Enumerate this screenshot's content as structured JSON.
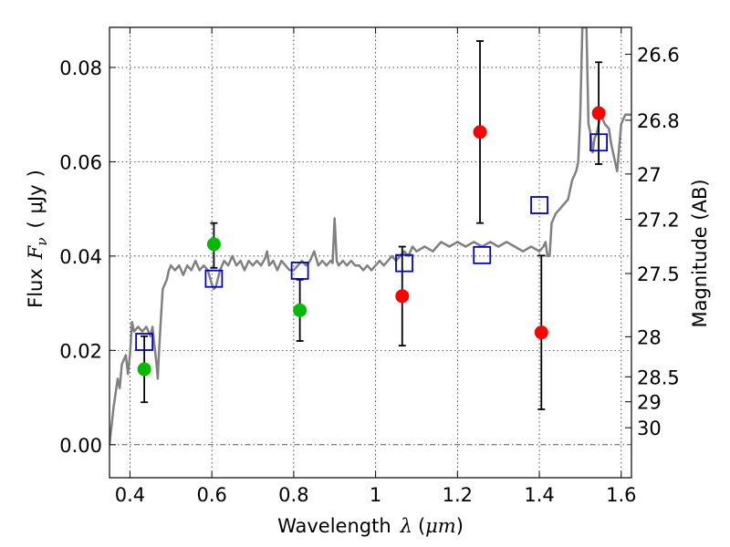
{
  "chart_data": {
    "type": "scatter",
    "xlabel": "Wavelength λ (μm)",
    "xlabel_parts": {
      "text": "Wavelength",
      "symbol": "λ",
      "unit_open": "(",
      "unit": "μm",
      "unit_close": ")"
    },
    "ylabel": "Flux F_ν ( μJy )",
    "ylabel_parts": {
      "text": "Flux",
      "symbol": "F",
      "subscript": "ν",
      "unit_open": "(",
      "unit": "μJy",
      "unit_close": ")"
    },
    "y2label": "Magnitude (AB)",
    "xlim": [
      0.35,
      1.625
    ],
    "ylim": [
      -0.007,
      0.0885
    ],
    "grid": true,
    "x_ticks": [
      {
        "value": 0.4,
        "label": "0.4"
      },
      {
        "value": 0.6,
        "label": "0.6"
      },
      {
        "value": 0.8,
        "label": "0.8"
      },
      {
        "value": 1.0,
        "label": "1"
      },
      {
        "value": 1.2,
        "label": "1.2"
      },
      {
        "value": 1.4,
        "label": "1.4"
      },
      {
        "value": 1.6,
        "label": "1.6"
      }
    ],
    "y_ticks": [
      {
        "value": 0.0,
        "label": "0.00"
      },
      {
        "value": 0.02,
        "label": "0.02"
      },
      {
        "value": 0.04,
        "label": "0.04"
      },
      {
        "value": 0.06,
        "label": "0.06"
      },
      {
        "value": 0.08,
        "label": "0.08"
      }
    ],
    "y2_ticks": [
      {
        "label": "26.6",
        "flux": 0.0828
      },
      {
        "label": "26.8",
        "flux": 0.0688
      },
      {
        "label": "27",
        "flux": 0.0574
      },
      {
        "label": "27.2",
        "flux": 0.0478
      },
      {
        "label": "27.5",
        "flux": 0.0363
      },
      {
        "label": "28",
        "flux": 0.0229
      },
      {
        "label": "28.5",
        "flux": 0.0144
      },
      {
        "label": "29",
        "flux": 0.0091
      },
      {
        "label": "30",
        "flux": 0.0036
      }
    ],
    "series": [
      {
        "kind": "line",
        "color": "#808080",
        "points": [
          [
            0.35,
            0.0
          ],
          [
            0.36,
            0.008
          ],
          [
            0.37,
            0.014
          ],
          [
            0.375,
            0.012
          ],
          [
            0.38,
            0.017
          ],
          [
            0.39,
            0.019
          ],
          [
            0.395,
            0.015
          ],
          [
            0.4,
            0.019
          ],
          [
            0.405,
            0.026
          ],
          [
            0.41,
            0.024
          ],
          [
            0.42,
            0.025
          ],
          [
            0.43,
            0.024
          ],
          [
            0.44,
            0.025
          ],
          [
            0.45,
            0.023
          ],
          [
            0.455,
            0.025
          ],
          [
            0.46,
            0.021
          ],
          [
            0.465,
            0.017
          ],
          [
            0.468,
            0.014
          ],
          [
            0.47,
            0.018
          ],
          [
            0.475,
            0.026
          ],
          [
            0.48,
            0.033
          ],
          [
            0.49,
            0.035
          ],
          [
            0.495,
            0.037
          ],
          [
            0.5,
            0.038
          ],
          [
            0.51,
            0.037
          ],
          [
            0.52,
            0.038
          ],
          [
            0.53,
            0.036
          ],
          [
            0.54,
            0.038
          ],
          [
            0.55,
            0.037
          ],
          [
            0.56,
            0.039
          ],
          [
            0.57,
            0.037
          ],
          [
            0.58,
            0.038
          ],
          [
            0.59,
            0.037
          ],
          [
            0.6,
            0.034
          ],
          [
            0.605,
            0.033
          ],
          [
            0.61,
            0.0335
          ],
          [
            0.62,
            0.037
          ],
          [
            0.63,
            0.039
          ],
          [
            0.64,
            0.038
          ],
          [
            0.65,
            0.04
          ],
          [
            0.66,
            0.038
          ],
          [
            0.67,
            0.039
          ],
          [
            0.68,
            0.037
          ],
          [
            0.69,
            0.039
          ],
          [
            0.7,
            0.038
          ],
          [
            0.71,
            0.039
          ],
          [
            0.72,
            0.038
          ],
          [
            0.73,
            0.0395
          ],
          [
            0.735,
            0.041
          ],
          [
            0.74,
            0.038
          ],
          [
            0.75,
            0.039
          ],
          [
            0.76,
            0.037
          ],
          [
            0.77,
            0.039
          ],
          [
            0.78,
            0.038
          ],
          [
            0.79,
            0.037
          ],
          [
            0.8,
            0.037
          ],
          [
            0.81,
            0.038
          ],
          [
            0.82,
            0.039
          ],
          [
            0.83,
            0.038
          ],
          [
            0.84,
            0.039
          ],
          [
            0.85,
            0.041
          ],
          [
            0.86,
            0.038
          ],
          [
            0.87,
            0.039
          ],
          [
            0.88,
            0.038
          ],
          [
            0.89,
            0.039
          ],
          [
            0.895,
            0.0385
          ],
          [
            0.9,
            0.048
          ],
          [
            0.905,
            0.039
          ],
          [
            0.91,
            0.038
          ],
          [
            0.92,
            0.039
          ],
          [
            0.93,
            0.038
          ],
          [
            0.94,
            0.039
          ],
          [
            0.95,
            0.038
          ],
          [
            0.96,
            0.038
          ],
          [
            0.97,
            0.037
          ],
          [
            0.98,
            0.038
          ],
          [
            0.99,
            0.037
          ],
          [
            1.0,
            0.038
          ],
          [
            1.01,
            0.039
          ],
          [
            1.02,
            0.038
          ],
          [
            1.03,
            0.039
          ],
          [
            1.04,
            0.04
          ],
          [
            1.05,
            0.039
          ],
          [
            1.06,
            0.04
          ],
          [
            1.07,
            0.041
          ],
          [
            1.08,
            0.04
          ],
          [
            1.09,
            0.042
          ],
          [
            1.1,
            0.041
          ],
          [
            1.12,
            0.042
          ],
          [
            1.14,
            0.041
          ],
          [
            1.15,
            0.042
          ],
          [
            1.16,
            0.043
          ],
          [
            1.18,
            0.042
          ],
          [
            1.2,
            0.043
          ],
          [
            1.22,
            0.042
          ],
          [
            1.24,
            0.043
          ],
          [
            1.26,
            0.042
          ],
          [
            1.28,
            0.043
          ],
          [
            1.3,
            0.042
          ],
          [
            1.32,
            0.043
          ],
          [
            1.34,
            0.042
          ],
          [
            1.36,
            0.041
          ],
          [
            1.38,
            0.042
          ],
          [
            1.4,
            0.041
          ],
          [
            1.41,
            0.042
          ],
          [
            1.415,
            0.043
          ],
          [
            1.42,
            0.04
          ],
          [
            1.425,
            0.04
          ],
          [
            1.43,
            0.047
          ],
          [
            1.44,
            0.049
          ],
          [
            1.45,
            0.05
          ],
          [
            1.46,
            0.051
          ],
          [
            1.47,
            0.052
          ],
          [
            1.48,
            0.056
          ],
          [
            1.49,
            0.058
          ],
          [
            1.495,
            0.06
          ],
          [
            1.5,
            0.07
          ],
          [
            1.505,
            0.0885
          ],
          [
            1.515,
            0.0885
          ],
          [
            1.52,
            0.068
          ],
          [
            1.525,
            0.066
          ],
          [
            1.53,
            0.062
          ],
          [
            1.535,
            0.065
          ],
          [
            1.54,
            0.066
          ],
          [
            1.55,
            0.07
          ],
          [
            1.56,
            0.068
          ],
          [
            1.57,
            0.067
          ],
          [
            1.575,
            0.064
          ],
          [
            1.58,
            0.062
          ],
          [
            1.59,
            0.058
          ],
          [
            1.6,
            0.068
          ],
          [
            1.61,
            0.07
          ],
          [
            1.625,
            0.07
          ]
        ]
      },
      {
        "kind": "markers",
        "marker": "circle",
        "color": "#00bb00",
        "points": [
          {
            "x": 0.435,
            "y": 0.016,
            "err_low": 0.007,
            "err_high": 0.007
          },
          {
            "x": 0.605,
            "y": 0.0425,
            "err_low": 0.005,
            "err_high": 0.0045
          },
          {
            "x": 0.815,
            "y": 0.0285,
            "err_low": 0.0065,
            "err_high": 0.0065
          }
        ]
      },
      {
        "kind": "markers",
        "marker": "circle",
        "color": "#ff0000",
        "points": [
          {
            "x": 1.065,
            "y": 0.0315,
            "err_low": 0.0105,
            "err_high": 0.0105
          },
          {
            "x": 1.255,
            "y": 0.0663,
            "err_low": 0.0193,
            "err_high": 0.0193
          },
          {
            "x": 1.405,
            "y": 0.0238,
            "err_low": 0.0163,
            "err_high": 0.0163
          },
          {
            "x": 1.545,
            "y": 0.0703,
            "err_low": 0.0108,
            "err_high": 0.0108
          }
        ]
      },
      {
        "kind": "markers",
        "marker": "open-square",
        "color": "#0000cc",
        "points": [
          {
            "x": 0.435,
            "y": 0.0218
          },
          {
            "x": 0.605,
            "y": 0.0352
          },
          {
            "x": 0.815,
            "y": 0.0369
          },
          {
            "x": 1.07,
            "y": 0.0385
          },
          {
            "x": 1.26,
            "y": 0.0402
          },
          {
            "x": 1.4,
            "y": 0.0508
          },
          {
            "x": 1.545,
            "y": 0.0641
          }
        ]
      }
    ]
  }
}
